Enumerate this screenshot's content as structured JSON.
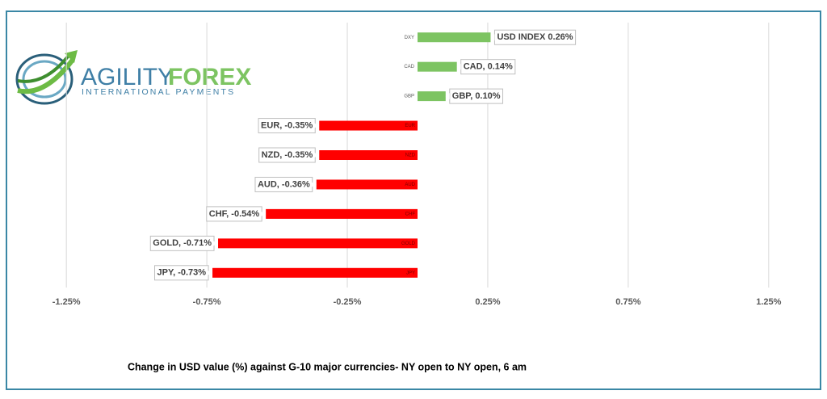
{
  "logo": {
    "name_part1": "AGILITY",
    "name_part2": "FOREX",
    "tagline": "INTERNATIONAL PAYMENTS"
  },
  "chart_data": {
    "type": "hbar",
    "title": "Change in  USD value (%)  against  G-10 major currencies- NY open to NY open, 6 am",
    "categories": [
      "DXY",
      "CAD",
      "GBP",
      "EUR",
      "NZD",
      "AUD",
      "CHF",
      "GOLD",
      "JPY"
    ],
    "values": [
      0.26,
      0.14,
      0.1,
      -0.35,
      -0.35,
      -0.36,
      -0.54,
      -0.71,
      -0.73
    ],
    "value_labels": [
      "USD INDEX 0.26%",
      "CAD, 0.14%",
      "GBP, 0.10%",
      "EUR, -0.35%",
      "NZD, -0.35%",
      "AUD, -0.36%",
      "CHF, -0.54%",
      "GOLD, -0.71%",
      "JPY, -0.73%"
    ],
    "colors": [
      "#7dc462",
      "#7dc462",
      "#7dc462",
      "#ff0000",
      "#ff0000",
      "#ff0000",
      "#ff0000",
      "#ff0000",
      "#ff0000"
    ],
    "xlim": [
      -1.4,
      1.4
    ],
    "xticks": [
      {
        "value": -1.25,
        "label": "-1.25%"
      },
      {
        "value": -0.75,
        "label": "-0.75%"
      },
      {
        "value": -0.25,
        "label": "-0.25%"
      },
      {
        "value": 0.25,
        "label": "0.25%"
      },
      {
        "value": 0.75,
        "label": "0.75%"
      },
      {
        "value": 1.25,
        "label": "1.25%"
      }
    ],
    "grid": true
  }
}
